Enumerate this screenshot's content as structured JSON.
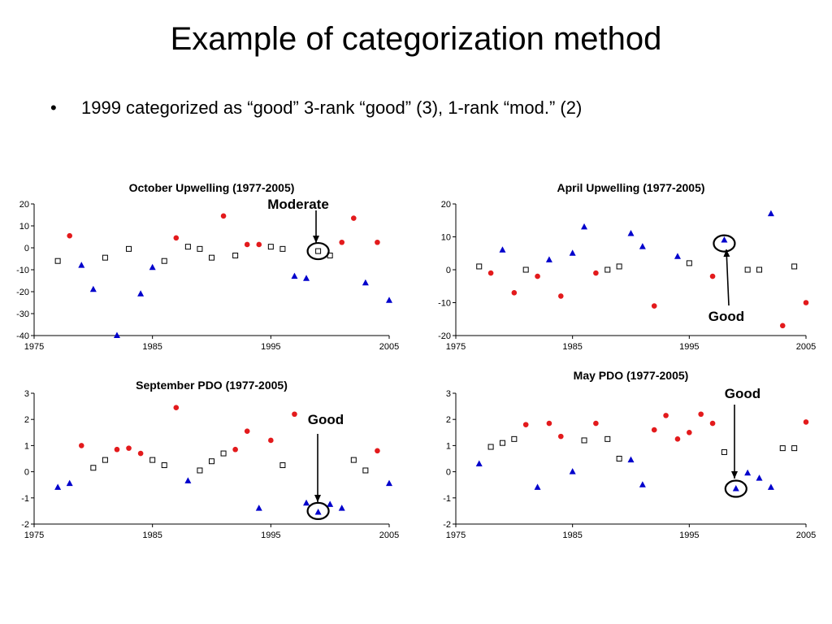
{
  "slide": {
    "title": "Example of categorization method",
    "bullet_symbol": "•",
    "bullet_text": "1999 categorized as “good” 3-rank “good” (3), 1-rank “mod.” (2)"
  },
  "colors": {
    "good": "#0000cc",
    "bad": "#e31a1c",
    "neutral_fill": "#ffffff",
    "neutral_stroke": "#000000"
  },
  "legend_note": "Blue triangles = good, red circles = bad, open squares = moderate (inferred marker meaning; no legend shown)",
  "chart_data": [
    {
      "type": "scatter",
      "title": "October Upwelling (1977-2005)",
      "xlim": [
        1975,
        2005
      ],
      "ylim": [
        -40,
        20
      ],
      "xticks": [
        1975,
        1985,
        1995,
        2005
      ],
      "yticks": [
        20,
        10,
        0,
        -10,
        -20,
        -30,
        -40
      ],
      "series": [
        {
          "name": "good",
          "marker": "triangle",
          "x": [
            1979,
            1980,
            1982,
            1984,
            1985,
            1997,
            1998,
            2003,
            2005
          ],
          "y": [
            -8,
            -19,
            -40,
            -21,
            -9,
            -13,
            -14,
            -16,
            -24
          ]
        },
        {
          "name": "bad",
          "marker": "circle",
          "x": [
            1978,
            1987,
            1991,
            1993,
            1994,
            2001,
            2002,
            2004
          ],
          "y": [
            5.5,
            4.5,
            14.5,
            1.5,
            1.5,
            2.5,
            13.5,
            2.5
          ]
        },
        {
          "name": "moderate",
          "marker": "square",
          "x": [
            1977,
            1981,
            1983,
            1986,
            1988,
            1989,
            1990,
            1992,
            1995,
            1996,
            1999,
            2000
          ],
          "y": [
            -6,
            -4.5,
            -0.5,
            -6,
            0.5,
            -0.5,
            -4.5,
            -3.5,
            0.5,
            -0.5,
            -1.5,
            -3.5
          ]
        }
      ],
      "annotation": {
        "label": "Moderate",
        "x": 1999,
        "y": -1.5
      }
    },
    {
      "type": "scatter",
      "title": "April Upwelling (1977-2005)",
      "xlim": [
        1975,
        2005
      ],
      "ylim": [
        -20,
        20
      ],
      "xticks": [
        1975,
        1985,
        1995,
        2005
      ],
      "yticks": [
        20,
        10,
        0,
        -10,
        -20
      ],
      "series": [
        {
          "name": "good",
          "marker": "triangle",
          "x": [
            1979,
            1983,
            1985,
            1986,
            1990,
            1991,
            1994,
            1998,
            2002
          ],
          "y": [
            6,
            3,
            5,
            13,
            11,
            7,
            4,
            9,
            17
          ]
        },
        {
          "name": "bad",
          "marker": "circle",
          "x": [
            1978,
            1980,
            1982,
            1984,
            1987,
            1992,
            1997,
            2003,
            2005
          ],
          "y": [
            -1,
            -7,
            -2,
            -8,
            -1,
            -11,
            -2,
            -17,
            -10
          ]
        },
        {
          "name": "moderate",
          "marker": "square",
          "x": [
            1977,
            1981,
            1988,
            1989,
            1995,
            2000,
            2001,
            2004
          ],
          "y": [
            1,
            0,
            0,
            1,
            2,
            0,
            0,
            1
          ]
        }
      ],
      "annotation": {
        "label": "Good",
        "x": 1998,
        "y": 8
      }
    },
    {
      "type": "scatter",
      "title": "September PDO (1977-2005)",
      "xlim": [
        1975,
        2005
      ],
      "ylim": [
        -2,
        3
      ],
      "xticks": [
        1975,
        1985,
        1995,
        2005
      ],
      "yticks": [
        3,
        2,
        1,
        0,
        -1,
        -2
      ],
      "series": [
        {
          "name": "good",
          "marker": "triangle",
          "x": [
            1977,
            1978,
            1988,
            1994,
            1998,
            1999,
            2000,
            2001,
            2005
          ],
          "y": [
            -0.6,
            -0.45,
            -0.35,
            -1.4,
            -1.2,
            -1.55,
            -1.25,
            -1.4,
            -0.45
          ]
        },
        {
          "name": "bad",
          "marker": "circle",
          "x": [
            1979,
            1982,
            1983,
            1984,
            1987,
            1992,
            1993,
            1995,
            1997,
            2004
          ],
          "y": [
            1.0,
            0.85,
            0.9,
            0.7,
            2.45,
            0.85,
            1.55,
            1.2,
            2.2,
            0.8
          ]
        },
        {
          "name": "moderate",
          "marker": "square",
          "x": [
            1980,
            1981,
            1985,
            1986,
            1989,
            1990,
            1991,
            1996,
            2002,
            2003
          ],
          "y": [
            0.15,
            0.45,
            0.45,
            0.25,
            0.05,
            0.4,
            0.7,
            0.25,
            0.45,
            0.05
          ]
        }
      ],
      "annotation": {
        "label": "Good",
        "x": 1999,
        "y": -1.5
      }
    },
    {
      "type": "scatter",
      "title": "May PDO (1977-2005)",
      "xlim": [
        1975,
        2005
      ],
      "ylim": [
        -2,
        3
      ],
      "xticks": [
        1975,
        1985,
        1995,
        2005
      ],
      "yticks": [
        3,
        2,
        1,
        0,
        -1,
        -2
      ],
      "series": [
        {
          "name": "good",
          "marker": "triangle",
          "x": [
            1977,
            1982,
            1985,
            1990,
            1991,
            1999,
            2000,
            2001,
            2002
          ],
          "y": [
            0.3,
            -0.6,
            0.0,
            0.45,
            -0.5,
            -0.65,
            -0.05,
            -0.25,
            -0.6
          ]
        },
        {
          "name": "bad",
          "marker": "circle",
          "x": [
            1981,
            1983,
            1984,
            1987,
            1992,
            1993,
            1994,
            1995,
            1996,
            1997,
            2005
          ],
          "y": [
            1.8,
            1.85,
            1.35,
            1.85,
            1.6,
            2.15,
            1.25,
            1.5,
            2.2,
            1.85,
            1.9
          ]
        },
        {
          "name": "moderate",
          "marker": "square",
          "x": [
            1978,
            1979,
            1980,
            1986,
            1988,
            1989,
            1998,
            2003,
            2004
          ],
          "y": [
            0.95,
            1.1,
            1.25,
            1.2,
            1.25,
            0.5,
            0.75,
            0.9,
            0.9
          ]
        }
      ],
      "annotation": {
        "label": "Good",
        "x": 1999,
        "y": -0.65
      }
    }
  ]
}
